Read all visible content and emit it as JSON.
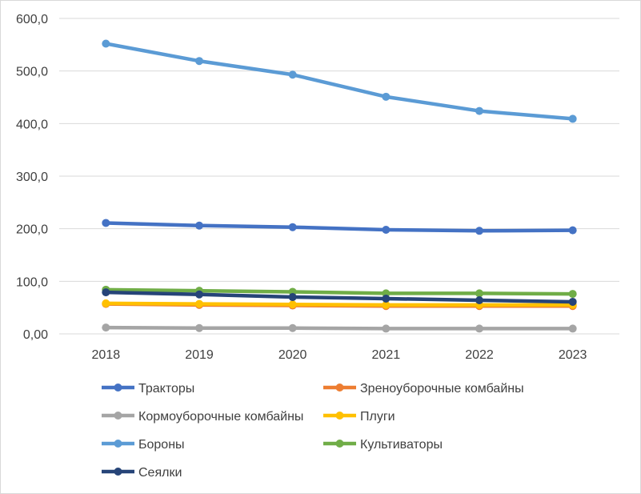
{
  "chart_data": {
    "type": "line",
    "title": "",
    "xlabel": "",
    "ylabel": "",
    "x": [
      "2018",
      "2019",
      "2020",
      "2021",
      "2022",
      "2023"
    ],
    "ylim": [
      0,
      600
    ],
    "yticks": [
      0,
      100,
      200,
      300,
      400,
      500,
      600
    ],
    "ytick_labels": [
      "0,00",
      "100,0",
      "200,0",
      "300,0",
      "400,0",
      "500,0",
      "600,0"
    ],
    "grid": "horizontal",
    "legend_position": "bottom",
    "series": [
      {
        "name": "Тракторы",
        "color": "#4472c4",
        "values": [
          211,
          206,
          203,
          198,
          196,
          197
        ]
      },
      {
        "name": "Зреноуборочные комбайны",
        "color": "#ed7d31",
        "values": [
          57,
          55,
          54,
          53,
          53,
          53
        ]
      },
      {
        "name": "Кормоуборочные комбайны",
        "color": "#a5a5a5",
        "values": [
          12,
          11,
          11,
          10,
          10,
          10
        ]
      },
      {
        "name": "Плуги",
        "color": "#ffc000",
        "values": [
          58,
          57,
          56,
          55,
          55,
          55
        ]
      },
      {
        "name": "Бороны",
        "color": "#5b9bd5",
        "values": [
          552,
          519,
          493,
          451,
          424,
          409
        ]
      },
      {
        "name": "Культиваторы",
        "color": "#70ad47",
        "values": [
          84,
          82,
          80,
          77,
          77,
          76
        ]
      },
      {
        "name": "Сеялки",
        "color": "#264478",
        "values": [
          79,
          75,
          70,
          67,
          64,
          61
        ]
      }
    ]
  }
}
